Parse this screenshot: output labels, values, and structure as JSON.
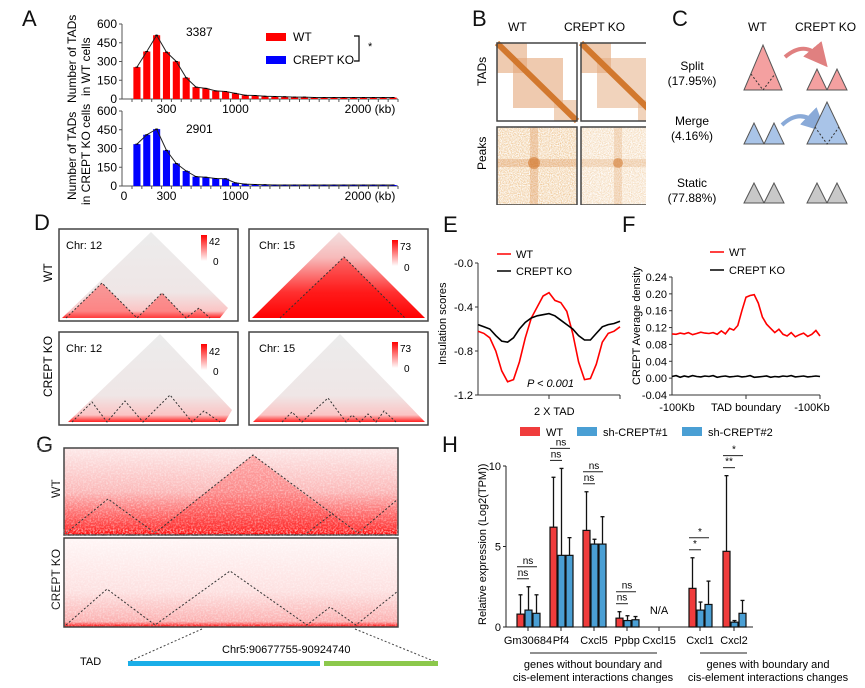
{
  "panels": {
    "A": "A",
    "B": "B",
    "C": "C",
    "D": "D",
    "E": "E",
    "F": "F",
    "G": "G",
    "H": "H"
  },
  "chart_data": [
    {
      "id": "A-top",
      "type": "bar",
      "title": "",
      "annotation": "3387",
      "ylabel": "Number of TADs in WT cells",
      "ylabel_lines": [
        "Number of TADs",
        "in WT cells"
      ],
      "xlabel": "",
      "xticks": [
        "300",
        "1000",
        "2000 (kb)"
      ],
      "yticks": [
        "0",
        "150",
        "300",
        "450",
        "600"
      ],
      "ylim": [
        0,
        600
      ],
      "color": "#ff0000",
      "categories_kb": [
        150,
        200,
        250,
        300,
        350,
        400,
        450,
        500,
        550,
        600,
        650,
        700,
        750,
        800,
        850,
        900,
        950,
        1000,
        1050,
        1100
      ],
      "values": [
        255,
        380,
        510,
        375,
        300,
        170,
        95,
        85,
        65,
        60,
        45,
        30,
        28,
        22,
        20,
        18,
        15,
        15,
        12,
        12
      ]
    },
    {
      "id": "A-bottom",
      "type": "bar",
      "annotation": "2901",
      "ylabel": "Number of TADs in CREPT KO cells",
      "ylabel_lines": [
        "Number of TADs",
        "in CREPT KO cells"
      ],
      "xticks": [
        "0",
        "300",
        "1000",
        "2000 (kb)"
      ],
      "yticks": [
        "0",
        "150",
        "300",
        "450",
        "600"
      ],
      "ylim": [
        0,
        600
      ],
      "color": "#0000ff",
      "values": [
        335,
        410,
        455,
        285,
        180,
        120,
        75,
        70,
        60,
        58,
        25,
        15,
        12,
        10,
        8,
        8,
        8,
        8,
        8,
        8
      ]
    },
    {
      "id": "E",
      "type": "line",
      "ylabel": "Insulation scores",
      "xlabel": "2 X TAD",
      "yticks": [
        "-0.0",
        "-0.4",
        "-0.8",
        "-1.2"
      ],
      "ylim": [
        -1.2,
        0.0
      ],
      "annotation": "P < 0.001",
      "series": [
        {
          "name": "WT",
          "color": "#ff0000",
          "y": [
            -0.62,
            -0.64,
            -0.68,
            -0.8,
            -0.98,
            -1.08,
            -1.06,
            -0.9,
            -0.68,
            -0.5,
            -0.4,
            -0.3,
            -0.27,
            -0.34,
            -0.36,
            -0.44,
            -0.64,
            -0.9,
            -1.06,
            -1.05,
            -0.92,
            -0.72,
            -0.64,
            -0.62,
            -0.58
          ]
        },
        {
          "name": "CREPT KO",
          "color": "#000000",
          "y": [
            -0.56,
            -0.58,
            -0.6,
            -0.66,
            -0.71,
            -0.72,
            -0.68,
            -0.6,
            -0.54,
            -0.5,
            -0.48,
            -0.47,
            -0.46,
            -0.48,
            -0.52,
            -0.56,
            -0.6,
            -0.66,
            -0.7,
            -0.7,
            -0.64,
            -0.58,
            -0.56,
            -0.55,
            -0.53
          ]
        }
      ]
    },
    {
      "id": "F",
      "type": "line",
      "ylabel": "CREPT Average density",
      "xticks": [
        "-100Kb",
        "TAD boundary",
        "-100Kb"
      ],
      "yticks": [
        "-0.04",
        "0.00",
        "0.04",
        "0.08",
        "0.12",
        "0.16",
        "0.20",
        "0.24"
      ],
      "ylim": [
        -0.04,
        0.24
      ],
      "series": [
        {
          "name": "WT",
          "color": "#ff0000",
          "y": [
            0.105,
            0.104,
            0.107,
            0.105,
            0.108,
            0.103,
            0.106,
            0.109,
            0.107,
            0.106,
            0.108,
            0.104,
            0.112,
            0.105,
            0.118,
            0.114,
            0.125,
            0.16,
            0.192,
            0.196,
            0.198,
            0.178,
            0.145,
            0.128,
            0.118,
            0.108,
            0.116,
            0.104,
            0.1,
            0.108,
            0.098,
            0.103,
            0.107,
            0.099,
            0.104,
            0.113,
            0.1
          ]
        },
        {
          "name": "CREPT KO",
          "color": "#000000",
          "y": [
            0.004,
            0.006,
            0.002,
            0.005,
            0.003,
            0.006,
            0.004,
            0.003,
            0.005,
            0.004,
            0.006,
            0.002,
            0.004,
            0.005,
            0.003,
            0.004,
            0.005,
            0.003,
            0.004,
            0.006,
            0.002,
            0.003,
            0.004,
            0.005,
            0.002,
            0.004,
            0.003,
            0.005,
            0.004,
            0.006,
            0.003,
            0.004,
            0.005,
            0.003,
            0.004,
            0.005,
            0.004
          ]
        }
      ]
    },
    {
      "id": "H",
      "type": "bar",
      "ylabel": "Relative expression (Log2(TPM))",
      "yticks": [
        "0",
        "5",
        "10"
      ],
      "ylim": [
        0,
        10
      ],
      "categories": [
        "Gm30684",
        "Pf4",
        "Cxcl5",
        "Ppbp",
        "Cxcl15",
        "Cxcl1",
        "Cxcl2"
      ],
      "series": [
        {
          "name": "WT",
          "color": "#f03c3c",
          "values": [
            0.8,
            6.2,
            6.0,
            0.55,
            null,
            2.4,
            4.7
          ],
          "errors": [
            1.2,
            3.1,
            2.4,
            0.4,
            null,
            1.9,
            4.7
          ]
        },
        {
          "name": "sh-CREPT#1",
          "color": "#4a9fd4",
          "values": [
            1.05,
            4.45,
            5.15,
            0.4,
            null,
            1.05,
            0.3
          ],
          "errors": [
            1.45,
            5.4,
            0.3,
            0.3,
            null,
            0.5,
            0.1
          ]
        },
        {
          "name": "sh-CREPT#2",
          "color": "#4a9fd4",
          "values": [
            0.85,
            4.45,
            5.15,
            0.45,
            null,
            1.4,
            0.85
          ],
          "errors": [
            1.15,
            1.1,
            1.7,
            0.2,
            null,
            1.45,
            0.8
          ]
        }
      ],
      "significance": [
        [
          "ns",
          "ns"
        ],
        [
          "ns",
          "ns"
        ],
        [
          "ns",
          "ns"
        ],
        [
          "ns",
          "ns"
        ],
        [
          "N/A"
        ],
        [
          "*",
          "*"
        ],
        [
          "**",
          "*"
        ]
      ],
      "group_labels": [
        [
          "genes without boundary and",
          "cis-element interactions changes"
        ],
        [
          "genes with boundary and",
          "cis-element interactions changes"
        ]
      ]
    }
  ],
  "legendA": {
    "wt": "WT",
    "ko": "CREPT KO",
    "sig": "*",
    "wt_color": "#ff0000",
    "ko_color": "#0000ff"
  },
  "panelB": {
    "col1": "WT",
    "col2": "CREPT KO",
    "row1": "TADs",
    "row2": "Peaks",
    "color": "#d2782e"
  },
  "panelC": {
    "col1": "WT",
    "col2": "CREPT KO",
    "rows": [
      {
        "label": "Split",
        "pct": "(17.95%)",
        "color": "#f4a0a0"
      },
      {
        "label": "Merge",
        "pct": "(4.16%)",
        "color": "#a9c4e8"
      },
      {
        "label": "Static",
        "pct": "(77.88%)",
        "color": "#c8c8c8"
      }
    ]
  },
  "panelD": {
    "row1": "WT",
    "row2": "CREPT KO",
    "maps": [
      {
        "chr": "Chr: 12",
        "max": "42",
        "min": "0"
      },
      {
        "chr": "Chr: 15",
        "max": "73",
        "min": "0"
      },
      {
        "chr": "Chr: 12",
        "max": "42",
        "min": "0"
      },
      {
        "chr": "Chr: 15",
        "max": "73",
        "min": "0"
      }
    ]
  },
  "legendE": {
    "wt": "WT",
    "ko": "CREPT KO"
  },
  "legendF": {
    "wt": "WT",
    "ko": "CREPT KO"
  },
  "panelG": {
    "row1": "WT",
    "row2": "CREPT KO",
    "tad_label": "TAD",
    "region": "Chr5:90677755-90924740",
    "tad_colors": [
      "#1aaee8",
      "#8cc84b"
    ]
  },
  "legendH": {
    "wt": "WT",
    "sh1": "sh-CREPT#1",
    "sh2": "sh-CREPT#2"
  }
}
